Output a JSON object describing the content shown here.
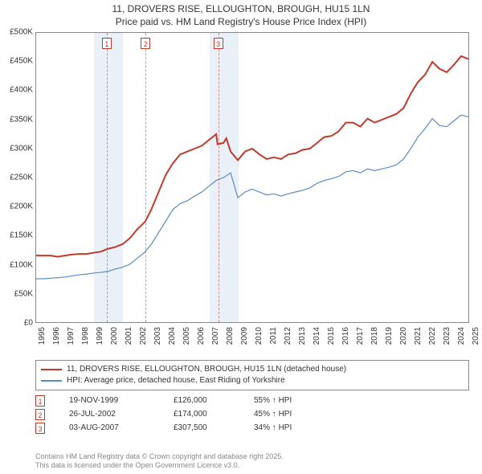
{
  "title_line1": "11, DROVERS RISE, ELLOUGHTON, BROUGH, HU15 1LN",
  "title_line2": "Price paid vs. HM Land Registry's House Price Index (HPI)",
  "chart": {
    "type": "line",
    "xlim": [
      1995,
      2025
    ],
    "ylim": [
      0,
      500000
    ],
    "ytick_step": 50000,
    "ytick_prefix": "£",
    "xtick_step": 1,
    "background_color": "#ffffff",
    "border_color": "#888888",
    "shaded_bands": [
      {
        "from": 1999,
        "to": 2001,
        "color": "#eaf0f7"
      },
      {
        "from": 2007,
        "to": 2009,
        "color": "#eaf0f7"
      }
    ],
    "markers": [
      {
        "n": "1",
        "x": 1999.88,
        "color": "#c0392b"
      },
      {
        "n": "2",
        "x": 2002.57,
        "color": "#c0392b"
      },
      {
        "n": "3",
        "x": 2007.59,
        "color": "#c0392b"
      }
    ],
    "series": [
      {
        "name": "subject",
        "label": "11, DROVERS RISE, ELLOUGHTON, BROUGH, HU15 1LN (detached house)",
        "color": "#c0392b",
        "line_width": 2,
        "data": [
          [
            1995.0,
            115000
          ],
          [
            1995.5,
            115000
          ],
          [
            1996.0,
            115000
          ],
          [
            1996.5,
            113000
          ],
          [
            1997.0,
            115000
          ],
          [
            1997.5,
            117000
          ],
          [
            1998.0,
            118000
          ],
          [
            1998.5,
            118000
          ],
          [
            1999.0,
            120000
          ],
          [
            1999.5,
            122000
          ],
          [
            1999.88,
            126000
          ],
          [
            2000.0,
            127000
          ],
          [
            2000.5,
            130000
          ],
          [
            2001.0,
            135000
          ],
          [
            2001.5,
            145000
          ],
          [
            2002.0,
            160000
          ],
          [
            2002.57,
            174000
          ],
          [
            2003.0,
            195000
          ],
          [
            2003.5,
            225000
          ],
          [
            2004.0,
            255000
          ],
          [
            2004.5,
            275000
          ],
          [
            2005.0,
            290000
          ],
          [
            2005.5,
            295000
          ],
          [
            2006.0,
            300000
          ],
          [
            2006.5,
            305000
          ],
          [
            2007.0,
            315000
          ],
          [
            2007.5,
            325000
          ],
          [
            2007.59,
            307500
          ],
          [
            2008.0,
            310000
          ],
          [
            2008.2,
            318000
          ],
          [
            2008.5,
            295000
          ],
          [
            2009.0,
            280000
          ],
          [
            2009.5,
            295000
          ],
          [
            2010.0,
            300000
          ],
          [
            2010.5,
            290000
          ],
          [
            2011.0,
            282000
          ],
          [
            2011.5,
            285000
          ],
          [
            2012.0,
            282000
          ],
          [
            2012.5,
            290000
          ],
          [
            2013.0,
            292000
          ],
          [
            2013.5,
            298000
          ],
          [
            2014.0,
            300000
          ],
          [
            2014.5,
            310000
          ],
          [
            2015.0,
            320000
          ],
          [
            2015.5,
            322000
          ],
          [
            2016.0,
            330000
          ],
          [
            2016.5,
            345000
          ],
          [
            2017.0,
            345000
          ],
          [
            2017.5,
            338000
          ],
          [
            2018.0,
            352000
          ],
          [
            2018.5,
            345000
          ],
          [
            2019.0,
            350000
          ],
          [
            2019.5,
            355000
          ],
          [
            2020.0,
            360000
          ],
          [
            2020.5,
            370000
          ],
          [
            2021.0,
            395000
          ],
          [
            2021.5,
            415000
          ],
          [
            2022.0,
            428000
          ],
          [
            2022.5,
            450000
          ],
          [
            2023.0,
            438000
          ],
          [
            2023.5,
            432000
          ],
          [
            2024.0,
            445000
          ],
          [
            2024.5,
            460000
          ],
          [
            2025.0,
            455000
          ]
        ]
      },
      {
        "name": "hpi",
        "label": "HPI: Average price, detached house, East Riding of Yorkshire",
        "color": "#5b8bc4",
        "line_width": 1.2,
        "data": [
          [
            1995.0,
            75000
          ],
          [
            1995.5,
            75000
          ],
          [
            1996.0,
            76000
          ],
          [
            1996.5,
            77000
          ],
          [
            1997.0,
            78000
          ],
          [
            1997.5,
            80000
          ],
          [
            1998.0,
            82000
          ],
          [
            1998.5,
            83000
          ],
          [
            1999.0,
            85000
          ],
          [
            1999.5,
            86000
          ],
          [
            2000.0,
            88000
          ],
          [
            2000.5,
            92000
          ],
          [
            2001.0,
            95000
          ],
          [
            2001.5,
            100000
          ],
          [
            2002.0,
            110000
          ],
          [
            2002.5,
            120000
          ],
          [
            2003.0,
            135000
          ],
          [
            2003.5,
            155000
          ],
          [
            2004.0,
            175000
          ],
          [
            2004.5,
            195000
          ],
          [
            2005.0,
            205000
          ],
          [
            2005.5,
            210000
          ],
          [
            2006.0,
            218000
          ],
          [
            2006.5,
            225000
          ],
          [
            2007.0,
            235000
          ],
          [
            2007.5,
            245000
          ],
          [
            2008.0,
            250000
          ],
          [
            2008.5,
            258000
          ],
          [
            2009.0,
            215000
          ],
          [
            2009.5,
            225000
          ],
          [
            2010.0,
            230000
          ],
          [
            2010.5,
            225000
          ],
          [
            2011.0,
            220000
          ],
          [
            2011.5,
            222000
          ],
          [
            2012.0,
            218000
          ],
          [
            2012.5,
            222000
          ],
          [
            2013.0,
            225000
          ],
          [
            2013.5,
            228000
          ],
          [
            2014.0,
            232000
          ],
          [
            2014.5,
            240000
          ],
          [
            2015.0,
            245000
          ],
          [
            2015.5,
            248000
          ],
          [
            2016.0,
            252000
          ],
          [
            2016.5,
            260000
          ],
          [
            2017.0,
            262000
          ],
          [
            2017.5,
            258000
          ],
          [
            2018.0,
            265000
          ],
          [
            2018.5,
            262000
          ],
          [
            2019.0,
            265000
          ],
          [
            2019.5,
            268000
          ],
          [
            2020.0,
            272000
          ],
          [
            2020.5,
            282000
          ],
          [
            2021.0,
            300000
          ],
          [
            2021.5,
            320000
          ],
          [
            2022.0,
            335000
          ],
          [
            2022.5,
            352000
          ],
          [
            2023.0,
            340000
          ],
          [
            2023.5,
            338000
          ],
          [
            2024.0,
            348000
          ],
          [
            2024.5,
            358000
          ],
          [
            2025.0,
            355000
          ]
        ]
      }
    ]
  },
  "legend": {
    "rows": [
      {
        "color": "#c0392b",
        "label": "11, DROVERS RISE, ELLOUGHTON, BROUGH, HU15 1LN (detached house)"
      },
      {
        "color": "#5b8bc4",
        "label": "HPI: Average price, detached house, East Riding of Yorkshire"
      }
    ]
  },
  "sales": [
    {
      "n": "1",
      "date": "19-NOV-1999",
      "price": "£126,000",
      "diff": "55% ↑ HPI"
    },
    {
      "n": "2",
      "date": "26-JUL-2002",
      "price": "£174,000",
      "diff": "45% ↑ HPI"
    },
    {
      "n": "3",
      "date": "03-AUG-2007",
      "price": "£307,500",
      "diff": "34% ↑ HPI"
    }
  ],
  "footer_line1": "Contains HM Land Registry data © Crown copyright and database right 2025.",
  "footer_line2": "This data is licensed under the Open Government Licence v3.0."
}
